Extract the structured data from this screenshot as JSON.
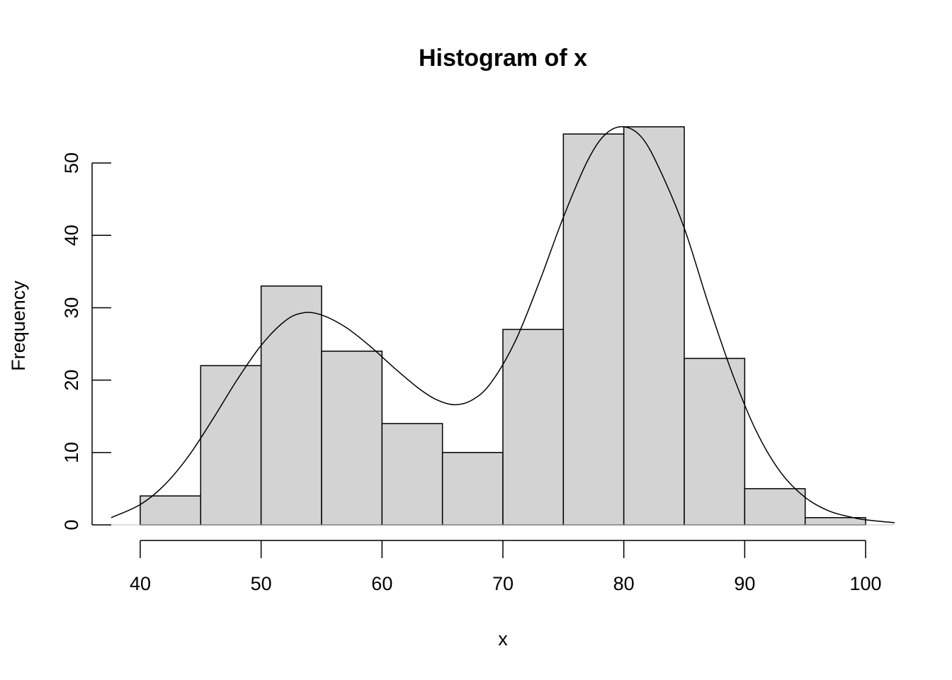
{
  "chart_data": {
    "type": "bar",
    "title": "Histogram of x",
    "xlabel": "x",
    "ylabel": "Frequency",
    "bin_edges": [
      40,
      45,
      50,
      55,
      60,
      65,
      70,
      75,
      80,
      85,
      90,
      95,
      100
    ],
    "values": [
      4,
      22,
      33,
      24,
      14,
      10,
      27,
      54,
      55,
      23,
      5,
      1
    ],
    "xlim": [
      37.6,
      102.4
    ],
    "ylim": [
      0,
      55
    ],
    "x_ticks": [
      40,
      50,
      60,
      70,
      80,
      90,
      100
    ],
    "y_ticks": [
      0,
      10,
      20,
      30,
      40,
      50
    ],
    "x_tick_labels": [
      "40",
      "50",
      "60",
      "70",
      "80",
      "90",
      "100"
    ],
    "y_tick_labels": [
      "0",
      "10",
      "20",
      "30",
      "40",
      "50"
    ],
    "density_curve": {
      "x": [
        37.6,
        40,
        42,
        44,
        46,
        48,
        50,
        52,
        53.5,
        55,
        57,
        59,
        61,
        63,
        64.5,
        66,
        67.5,
        69,
        71,
        73,
        75,
        77,
        78.5,
        80,
        81.5,
        83,
        85,
        87,
        89,
        91,
        93,
        95,
        97,
        99,
        100,
        102.4
      ],
      "y": [
        1,
        2.8,
        5.5,
        9.5,
        14.6,
        20,
        24.8,
        28.2,
        29.3,
        29,
        27.3,
        24.7,
        21.7,
        18.9,
        17.3,
        16.6,
        17.3,
        19.6,
        25.3,
        33.5,
        42.5,
        50.3,
        54,
        55,
        53.5,
        49,
        41,
        30.5,
        20.8,
        12.8,
        7.2,
        3.8,
        1.9,
        1,
        0.7,
        0.3
      ]
    }
  }
}
